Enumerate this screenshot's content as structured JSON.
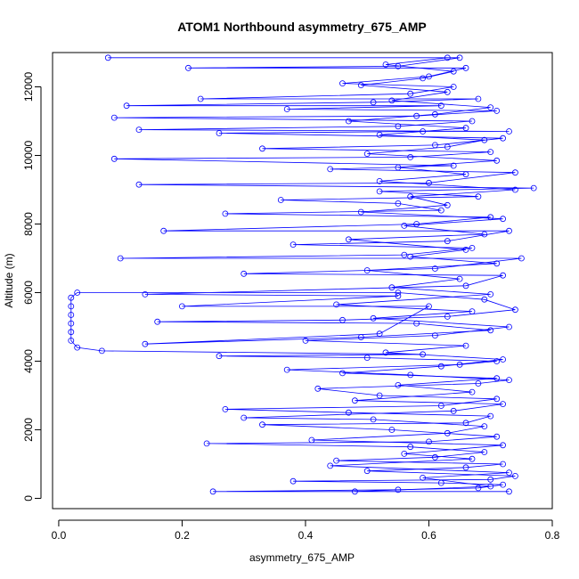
{
  "chart_data": {
    "type": "scatter",
    "title": "ATOM1 Northbound asymmetry_675_AMP",
    "xlabel": "asymmetry_675_AMP",
    "ylabel": "Altitude (m)",
    "xlim": [
      -0.01,
      0.8
    ],
    "ylim": [
      -300,
      13000
    ],
    "x_ticks": [
      0.0,
      0.2,
      0.4,
      0.6,
      0.8
    ],
    "x_tick_labels": [
      "0.0",
      "0.2",
      "0.4",
      "0.6",
      "0.8"
    ],
    "y_ticks": [
      0,
      2000,
      4000,
      6000,
      8000,
      10000,
      12000
    ],
    "y_tick_labels": [
      "0",
      "2000",
      "4000",
      "6000",
      "8000",
      "10000",
      "12000"
    ],
    "grid": false,
    "legend": "none",
    "series_color": "#0000ff",
    "series": [
      {
        "marker": "open-circle",
        "line": true,
        "points": [
          {
            "x": 0.73,
            "y": 200
          },
          {
            "x": 0.25,
            "y": 200
          },
          {
            "x": 0.55,
            "y": 250
          },
          {
            "x": 0.68,
            "y": 300
          },
          {
            "x": 0.72,
            "y": 400
          },
          {
            "x": 0.62,
            "y": 450
          },
          {
            "x": 0.38,
            "y": 500
          },
          {
            "x": 0.7,
            "y": 550
          },
          {
            "x": 0.74,
            "y": 650
          },
          {
            "x": 0.5,
            "y": 800
          },
          {
            "x": 0.66,
            "y": 900
          },
          {
            "x": 0.72,
            "y": 1000
          },
          {
            "x": 0.45,
            "y": 1100
          },
          {
            "x": 0.61,
            "y": 1200
          },
          {
            "x": 0.69,
            "y": 1350
          },
          {
            "x": 0.57,
            "y": 1500
          },
          {
            "x": 0.24,
            "y": 1600
          },
          {
            "x": 0.6,
            "y": 1650
          },
          {
            "x": 0.71,
            "y": 1800
          },
          {
            "x": 0.54,
            "y": 2000
          },
          {
            "x": 0.33,
            "y": 2150
          },
          {
            "x": 0.66,
            "y": 2200
          },
          {
            "x": 0.7,
            "y": 2400
          },
          {
            "x": 0.47,
            "y": 2500
          },
          {
            "x": 0.27,
            "y": 2600
          },
          {
            "x": 0.62,
            "y": 2700
          },
          {
            "x": 0.71,
            "y": 2900
          },
          {
            "x": 0.52,
            "y": 3000
          },
          {
            "x": 0.42,
            "y": 3200
          },
          {
            "x": 0.68,
            "y": 3350
          },
          {
            "x": 0.73,
            "y": 3450
          },
          {
            "x": 0.57,
            "y": 3600
          },
          {
            "x": 0.37,
            "y": 3750
          },
          {
            "x": 0.65,
            "y": 3900
          },
          {
            "x": 0.71,
            "y": 4000
          },
          {
            "x": 0.5,
            "y": 4100
          },
          {
            "x": 0.26,
            "y": 4150
          },
          {
            "x": 0.59,
            "y": 4200
          },
          {
            "x": 0.07,
            "y": 4300
          },
          {
            "x": 0.03,
            "y": 4400
          },
          {
            "x": 0.02,
            "y": 4600
          },
          {
            "x": 0.02,
            "y": 4850
          },
          {
            "x": 0.02,
            "y": 5100
          },
          {
            "x": 0.02,
            "y": 5350
          },
          {
            "x": 0.02,
            "y": 5600
          },
          {
            "x": 0.02,
            "y": 5850
          },
          {
            "x": 0.03,
            "y": 6000
          },
          {
            "x": 0.55,
            "y": 6000
          },
          {
            "x": 0.69,
            "y": 5800
          },
          {
            "x": 0.74,
            "y": 5500
          },
          {
            "x": 0.63,
            "y": 5300
          },
          {
            "x": 0.46,
            "y": 5200
          },
          {
            "x": 0.16,
            "y": 5150
          },
          {
            "x": 0.58,
            "y": 5100
          },
          {
            "x": 0.7,
            "y": 4900
          },
          {
            "x": 0.49,
            "y": 4700
          },
          {
            "x": 0.14,
            "y": 4500
          },
          {
            "x": 0.52,
            "y": 4800
          },
          {
            "x": 0.6,
            "y": 5600
          },
          {
            "x": 0.2,
            "y": 5600
          },
          {
            "x": 0.55,
            "y": 5900
          },
          {
            "x": 0.14,
            "y": 5950
          },
          {
            "x": 0.66,
            "y": 6200
          },
          {
            "x": 0.72,
            "y": 6500
          },
          {
            "x": 0.3,
            "y": 6550
          },
          {
            "x": 0.61,
            "y": 6700
          },
          {
            "x": 0.75,
            "y": 7000
          },
          {
            "x": 0.1,
            "y": 7000
          },
          {
            "x": 0.56,
            "y": 7100
          },
          {
            "x": 0.67,
            "y": 7300
          },
          {
            "x": 0.38,
            "y": 7400
          },
          {
            "x": 0.63,
            "y": 7500
          },
          {
            "x": 0.73,
            "y": 7800
          },
          {
            "x": 0.17,
            "y": 7800
          },
          {
            "x": 0.58,
            "y": 8000
          },
          {
            "x": 0.7,
            "y": 8200
          },
          {
            "x": 0.27,
            "y": 8300
          },
          {
            "x": 0.62,
            "y": 8400
          },
          {
            "x": 0.55,
            "y": 8600
          },
          {
            "x": 0.36,
            "y": 8700
          },
          {
            "x": 0.68,
            "y": 8800
          },
          {
            "x": 0.52,
            "y": 8950
          },
          {
            "x": 0.77,
            "y": 9050
          },
          {
            "x": 0.13,
            "y": 9150
          },
          {
            "x": 0.6,
            "y": 9200
          },
          {
            "x": 0.74,
            "y": 9500
          },
          {
            "x": 0.44,
            "y": 9600
          },
          {
            "x": 0.64,
            "y": 9700
          },
          {
            "x": 0.09,
            "y": 9900
          },
          {
            "x": 0.57,
            "y": 9950
          },
          {
            "x": 0.7,
            "y": 10100
          },
          {
            "x": 0.33,
            "y": 10200
          },
          {
            "x": 0.61,
            "y": 10300
          },
          {
            "x": 0.72,
            "y": 10500
          },
          {
            "x": 0.26,
            "y": 10650
          },
          {
            "x": 0.59,
            "y": 10700
          },
          {
            "x": 0.73,
            "y": 10700
          },
          {
            "x": 0.13,
            "y": 10750
          },
          {
            "x": 0.55,
            "y": 10850
          },
          {
            "x": 0.67,
            "y": 11000
          },
          {
            "x": 0.09,
            "y": 11100
          },
          {
            "x": 0.58,
            "y": 11150
          },
          {
            "x": 0.71,
            "y": 11300
          },
          {
            "x": 0.37,
            "y": 11350
          },
          {
            "x": 0.62,
            "y": 11450
          },
          {
            "x": 0.11,
            "y": 11450
          },
          {
            "x": 0.51,
            "y": 11550
          },
          {
            "x": 0.68,
            "y": 11650
          },
          {
            "x": 0.23,
            "y": 11650
          },
          {
            "x": 0.57,
            "y": 11800
          },
          {
            "x": 0.64,
            "y": 12000
          },
          {
            "x": 0.46,
            "y": 12100
          },
          {
            "x": 0.6,
            "y": 12300
          },
          {
            "x": 0.66,
            "y": 12550
          },
          {
            "x": 0.21,
            "y": 12550
          },
          {
            "x": 0.55,
            "y": 12600
          },
          {
            "x": 0.65,
            "y": 12850
          },
          {
            "x": 0.08,
            "y": 12850
          }
        ]
      },
      {
        "marker": "open-circle",
        "line": true,
        "points": [
          {
            "x": 0.48,
            "y": 200
          },
          {
            "x": 0.7,
            "y": 350
          },
          {
            "x": 0.59,
            "y": 600
          },
          {
            "x": 0.73,
            "y": 750
          },
          {
            "x": 0.44,
            "y": 950
          },
          {
            "x": 0.67,
            "y": 1150
          },
          {
            "x": 0.56,
            "y": 1300
          },
          {
            "x": 0.72,
            "y": 1550
          },
          {
            "x": 0.41,
            "y": 1700
          },
          {
            "x": 0.63,
            "y": 1900
          },
          {
            "x": 0.69,
            "y": 2100
          },
          {
            "x": 0.51,
            "y": 2300
          },
          {
            "x": 0.3,
            "y": 2350
          },
          {
            "x": 0.64,
            "y": 2550
          },
          {
            "x": 0.72,
            "y": 2750
          },
          {
            "x": 0.48,
            "y": 2850
          },
          {
            "x": 0.67,
            "y": 3100
          },
          {
            "x": 0.55,
            "y": 3300
          },
          {
            "x": 0.71,
            "y": 3500
          },
          {
            "x": 0.46,
            "y": 3650
          },
          {
            "x": 0.62,
            "y": 3850
          },
          {
            "x": 0.72,
            "y": 4050
          },
          {
            "x": 0.53,
            "y": 4250
          },
          {
            "x": 0.66,
            "y": 4450
          },
          {
            "x": 0.4,
            "y": 4600
          },
          {
            "x": 0.61,
            "y": 4750
          },
          {
            "x": 0.73,
            "y": 5000
          },
          {
            "x": 0.51,
            "y": 5250
          },
          {
            "x": 0.67,
            "y": 5450
          },
          {
            "x": 0.45,
            "y": 5650
          },
          {
            "x": 0.7,
            "y": 5950
          },
          {
            "x": 0.54,
            "y": 6150
          },
          {
            "x": 0.65,
            "y": 6400
          },
          {
            "x": 0.5,
            "y": 6650
          },
          {
            "x": 0.71,
            "y": 6850
          },
          {
            "x": 0.57,
            "y": 7050
          },
          {
            "x": 0.66,
            "y": 7250
          },
          {
            "x": 0.47,
            "y": 7550
          },
          {
            "x": 0.69,
            "y": 7700
          },
          {
            "x": 0.56,
            "y": 7950
          },
          {
            "x": 0.72,
            "y": 8150
          },
          {
            "x": 0.49,
            "y": 8350
          },
          {
            "x": 0.63,
            "y": 8550
          },
          {
            "x": 0.57,
            "y": 8800
          },
          {
            "x": 0.74,
            "y": 9000
          },
          {
            "x": 0.52,
            "y": 9250
          },
          {
            "x": 0.66,
            "y": 9450
          },
          {
            "x": 0.55,
            "y": 9650
          },
          {
            "x": 0.71,
            "y": 9850
          },
          {
            "x": 0.5,
            "y": 10050
          },
          {
            "x": 0.63,
            "y": 10250
          },
          {
            "x": 0.69,
            "y": 10450
          },
          {
            "x": 0.52,
            "y": 10600
          },
          {
            "x": 0.66,
            "y": 10800
          },
          {
            "x": 0.47,
            "y": 11000
          },
          {
            "x": 0.61,
            "y": 11200
          },
          {
            "x": 0.7,
            "y": 11400
          },
          {
            "x": 0.54,
            "y": 11600
          },
          {
            "x": 0.63,
            "y": 11850
          },
          {
            "x": 0.49,
            "y": 12050
          },
          {
            "x": 0.59,
            "y": 12250
          },
          {
            "x": 0.64,
            "y": 12450
          },
          {
            "x": 0.53,
            "y": 12650
          },
          {
            "x": 0.63,
            "y": 12850
          }
        ]
      }
    ]
  }
}
